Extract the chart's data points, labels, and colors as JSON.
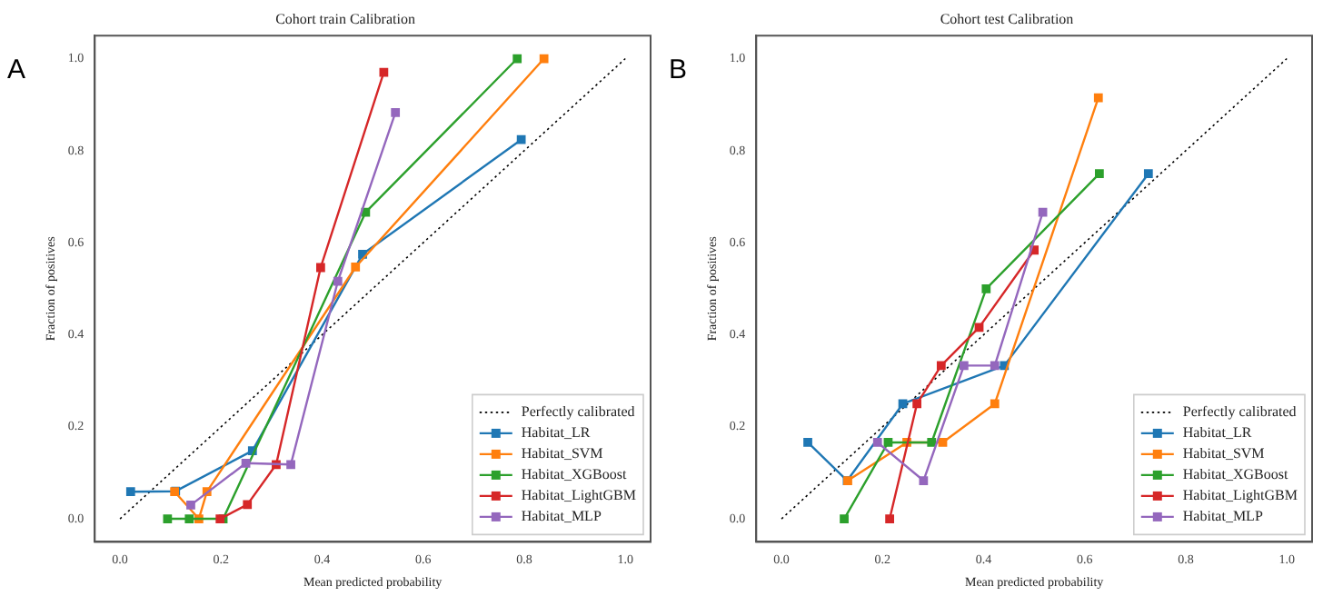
{
  "chart_data": [
    {
      "type": "line",
      "title": "Cohort train Calibration",
      "xlabel": "Mean predicted probability",
      "ylabel": "Fraction of positives",
      "annotations": [
        "A"
      ],
      "xlim": [
        -0.05,
        1.05
      ],
      "ylim": [
        -0.05,
        1.05
      ],
      "xticks": [
        {
          "value": 0,
          "label": "0.0"
        },
        {
          "value": 0.2,
          "label": "0.2"
        },
        {
          "value": 0.4,
          "label": "0.4"
        },
        {
          "value": 0.6,
          "label": "0.6"
        },
        {
          "value": 0.8,
          "label": "0.8"
        },
        {
          "value": 1,
          "label": "1.0"
        }
      ],
      "yticks": [
        {
          "value": 0,
          "label": "0.0"
        },
        {
          "value": 0.2,
          "label": "0.2"
        },
        {
          "value": 0.4,
          "label": "0.4"
        },
        {
          "value": 0.6,
          "label": "0.6"
        },
        {
          "value": 0.8,
          "label": "0.8"
        },
        {
          "value": 1,
          "label": "1.0"
        }
      ],
      "grid": false,
      "legend": "bottom right",
      "marker": "square",
      "series": [
        {
          "name": "Perfectly calibrated",
          "color": "#000000",
          "x": [
            0,
            1
          ],
          "values": [
            0,
            1
          ],
          "marker": "none",
          "line_style": "dotted"
        },
        {
          "name": "Habitat_LR",
          "color": "#1f77b4",
          "x": [
            0.021,
            0.11,
            0.262,
            0.48,
            0.794
          ],
          "values": [
            0.059,
            0.06,
            0.148,
            0.575,
            0.824
          ]
        },
        {
          "name": "Habitat_SVM",
          "color": "#ff7f0e",
          "x": [
            0.108,
            0.156,
            0.172,
            0.466,
            0.839
          ],
          "values": [
            0.059,
            0,
            0.059,
            0.547,
            1.0
          ]
        },
        {
          "name": "Habitat_XGBoost",
          "color": "#2ca02c",
          "x": [
            0.094,
            0.137,
            0.204,
            0.486,
            0.786
          ],
          "values": [
            0,
            0,
            0,
            0.666,
            1.0
          ]
        },
        {
          "name": "Habitat_LightGBM",
          "color": "#d62728",
          "x": [
            0.198,
            0.252,
            0.309,
            0.397,
            0.522
          ],
          "values": [
            0,
            0.031,
            0.118,
            0.546,
            0.97
          ]
        },
        {
          "name": "Habitat_MLP",
          "color": "#9467bd",
          "x": [
            0.14,
            0.249,
            0.338,
            0.431,
            0.545
          ],
          "values": [
            0.03,
            0.121,
            0.118,
            0.516,
            0.883
          ]
        }
      ]
    },
    {
      "type": "line",
      "title": "Cohort test Calibration",
      "xlabel": "Mean predicted probability",
      "ylabel": "Fraction of positives",
      "annotations": [
        "B"
      ],
      "xlim": [
        -0.05,
        1.05
      ],
      "ylim": [
        -0.05,
        1.05
      ],
      "xticks": [
        {
          "value": 0,
          "label": "0.0"
        },
        {
          "value": 0.2,
          "label": "0.2"
        },
        {
          "value": 0.4,
          "label": "0.4"
        },
        {
          "value": 0.6,
          "label": "0.6"
        },
        {
          "value": 0.8,
          "label": "0.8"
        },
        {
          "value": 1,
          "label": "1.0"
        }
      ],
      "yticks": [
        {
          "value": 0,
          "label": "0.0"
        },
        {
          "value": 0.2,
          "label": "0.2"
        },
        {
          "value": 0.4,
          "label": "0.4"
        },
        {
          "value": 0.6,
          "label": "0.6"
        },
        {
          "value": 0.8,
          "label": "0.8"
        },
        {
          "value": 1,
          "label": "1.0"
        }
      ],
      "grid": false,
      "legend": "bottom right",
      "marker": "square",
      "series": [
        {
          "name": "Perfectly calibrated",
          "color": "#000000",
          "x": [
            0,
            1
          ],
          "values": [
            0,
            1
          ],
          "marker": "none",
          "line_style": "dotted"
        },
        {
          "name": "Habitat_LR",
          "color": "#1f77b4",
          "x": [
            0.052,
            0.13,
            0.24,
            0.441,
            0.726
          ],
          "values": [
            0.166,
            0.083,
            0.25,
            0.333,
            0.75
          ]
        },
        {
          "name": "Habitat_SVM",
          "color": "#ff7f0e",
          "x": [
            0.131,
            0.248,
            0.319,
            0.422,
            0.627
          ],
          "values": [
            0.083,
            0.166,
            0.166,
            0.25,
            0.915
          ]
        },
        {
          "name": "Habitat_XGBoost",
          "color": "#2ca02c",
          "x": [
            0.124,
            0.211,
            0.297,
            0.405,
            0.629
          ],
          "values": [
            0,
            0.166,
            0.166,
            0.5,
            0.75
          ]
        },
        {
          "name": "Habitat_LightGBM",
          "color": "#d62728",
          "x": [
            0.214,
            0.268,
            0.316,
            0.391,
            0.5
          ],
          "values": [
            0,
            0.25,
            0.333,
            0.416,
            0.584
          ]
        },
        {
          "name": "Habitat_MLP",
          "color": "#9467bd",
          "x": [
            0.19,
            0.281,
            0.361,
            0.422,
            0.517
          ],
          "values": [
            0.166,
            0.083,
            0.333,
            0.333,
            0.666
          ]
        }
      ]
    }
  ]
}
